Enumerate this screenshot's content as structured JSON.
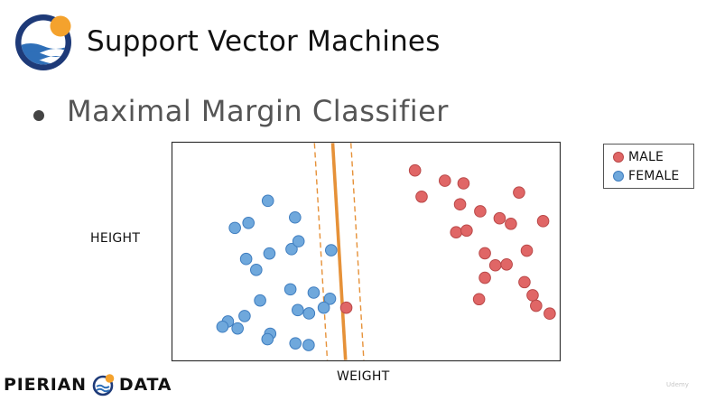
{
  "slide": {
    "title": "Support Vector Machines",
    "bullet": "Maximal Margin Classifier"
  },
  "brand": {
    "left": "PIERIAN",
    "right": "DATA",
    "watermark": "Udemy"
  },
  "icons": {
    "header_logo": "pierian-sun-waves-logo-icon",
    "brand_mark": "pierian-mini-logo-icon"
  },
  "colors": {
    "male": "#e06666",
    "male_edge": "#b94848",
    "female": "#6fa8dc",
    "female_edge": "#3f7dbf",
    "hyperplane": "#e69138",
    "logo_navy": "#1e3a78",
    "logo_sun": "#f4a22d"
  },
  "chart_data": {
    "type": "scatter",
    "title": "",
    "xlabel": "WEIGHT",
    "ylabel": "HEIGHT",
    "xlim": [
      0,
      100
    ],
    "ylim": [
      0,
      100
    ],
    "grid": false,
    "legend_position": "outside-top-right",
    "series": [
      {
        "name": "MALE",
        "color": "#e06666",
        "points": [
          [
            44.9,
            24.3
          ],
          [
            62.6,
            87.1
          ],
          [
            64.3,
            75.1
          ],
          [
            70.3,
            82.4
          ],
          [
            74.2,
            71.6
          ],
          [
            75.1,
            81.2
          ],
          [
            73.2,
            58.8
          ],
          [
            79.4,
            68.4
          ],
          [
            75.9,
            59.6
          ],
          [
            80.6,
            49.2
          ],
          [
            84.4,
            65.2
          ],
          [
            83.3,
            43.7
          ],
          [
            86.2,
            44.1
          ],
          [
            80.6,
            38.0
          ],
          [
            79.1,
            28.2
          ],
          [
            89.4,
            77.0
          ],
          [
            87.3,
            62.7
          ],
          [
            91.4,
            50.4
          ],
          [
            90.8,
            36.0
          ],
          [
            95.6,
            63.9
          ],
          [
            92.9,
            30.0
          ],
          [
            93.8,
            25.2
          ],
          [
            97.3,
            21.6
          ]
        ]
      },
      {
        "name": "FEMALE",
        "color": "#6fa8dc",
        "points": [
          [
            24.7,
            73.2
          ],
          [
            19.7,
            63.1
          ],
          [
            31.7,
            65.6
          ],
          [
            16.2,
            60.8
          ],
          [
            30.8,
            51.1
          ],
          [
            32.6,
            54.7
          ],
          [
            19.1,
            46.6
          ],
          [
            21.7,
            41.6
          ],
          [
            25.1,
            49.1
          ],
          [
            30.5,
            32.7
          ],
          [
            40.7,
            28.4
          ],
          [
            22.7,
            27.6
          ],
          [
            36.5,
            31.2
          ],
          [
            32.4,
            23.2
          ],
          [
            35.3,
            21.7
          ],
          [
            18.7,
            20.5
          ],
          [
            14.4,
            18.0
          ],
          [
            13.0,
            15.6
          ],
          [
            16.9,
            14.8
          ],
          [
            25.3,
            12.4
          ],
          [
            24.6,
            9.9
          ],
          [
            31.8,
            8.0
          ],
          [
            35.2,
            7.2
          ],
          [
            39.1,
            24.3
          ],
          [
            41.0,
            50.6
          ]
        ]
      }
    ],
    "decision_boundary": {
      "x_at_ymax": 41.4,
      "x_at_ymin": 44.7
    },
    "margin_lines": [
      {
        "x_at_ymax": 36.7,
        "x_at_ymin": 40.0
      },
      {
        "x_at_ymax": 46.1,
        "x_at_ymin": 49.4
      }
    ]
  }
}
